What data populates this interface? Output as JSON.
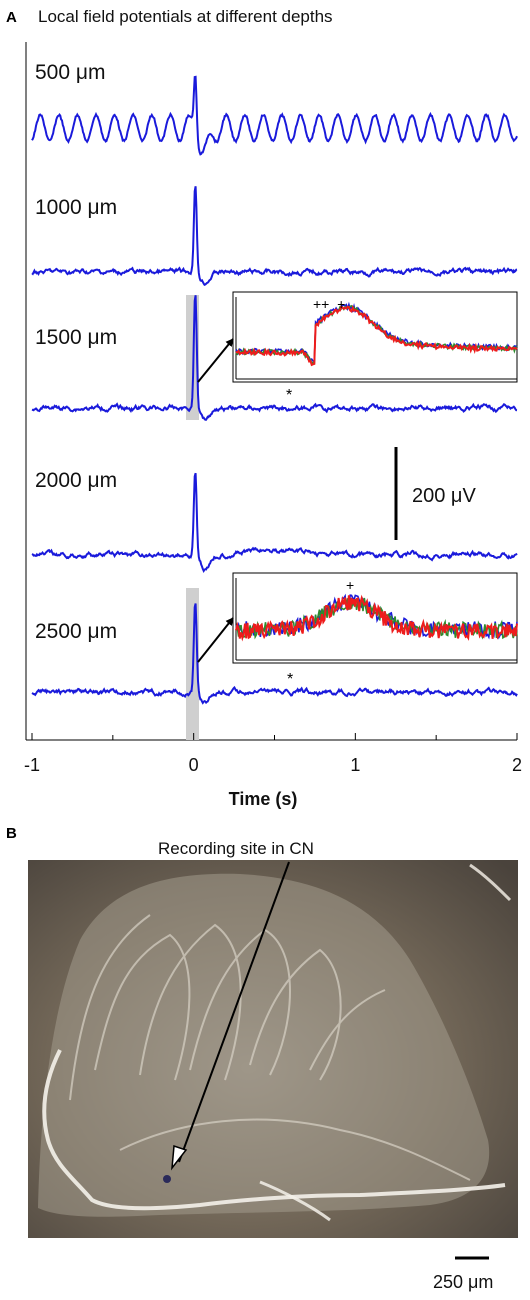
{
  "panel_a": {
    "letter": "A",
    "title": "Local field potentials at different depths",
    "traces": [
      {
        "depth_label": "500 μm"
      },
      {
        "depth_label": "1000 μm"
      },
      {
        "depth_label": "1500 μm"
      },
      {
        "depth_label": "2000 μm"
      },
      {
        "depth_label": "2500 μm"
      }
    ],
    "scale_bar_label": "200 μV",
    "inset_1": {
      "top_marks": "++  +",
      "bottom_mark": "*"
    },
    "inset_2": {
      "top_marks": "+",
      "bottom_mark": "*"
    }
  },
  "panel_b": {
    "letter": "B",
    "annotation": "Recording site in CN",
    "scale_bar_label": "250 μm"
  },
  "colors": {
    "trace": "#1a1adb",
    "inset_blue": "#1a1adb",
    "inset_green": "#2e8b2e",
    "inset_red": "#ee1c1c",
    "highlight": "#cfcfcf",
    "photo_bg": "#5d544b"
  },
  "chart_data": {
    "type": "line",
    "xlabel": "Time (s)",
    "xlim": [
      -1,
      2
    ],
    "xticks": [
      -1,
      0,
      1,
      2
    ],
    "series": [
      {
        "name": "500 μm"
      },
      {
        "name": "1000 μm"
      },
      {
        "name": "1500 μm"
      },
      {
        "name": "2000 μm"
      },
      {
        "name": "2500 μm"
      }
    ]
  }
}
